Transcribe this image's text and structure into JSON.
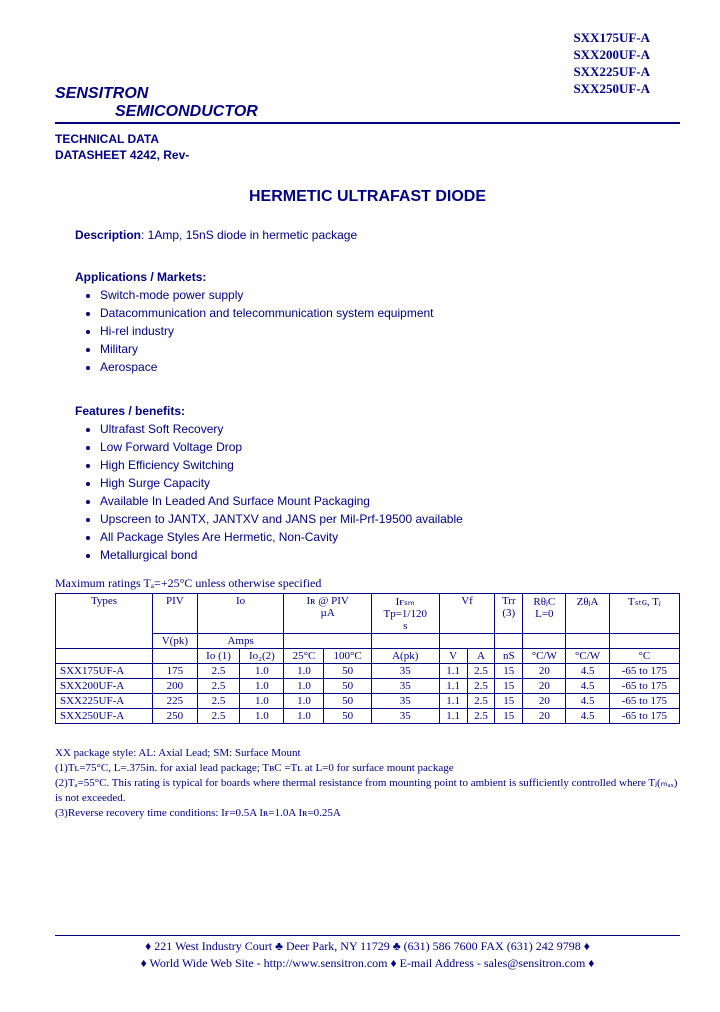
{
  "colors": {
    "text": "#000080",
    "background": "#ffffff",
    "border": "#000080"
  },
  "partNumbers": [
    "SXX175UF-A",
    "SXX200UF-A",
    "SXX225UF-A",
    "SXX250UF-A"
  ],
  "company": {
    "line1": "SENSITRON",
    "line2": "SEMICONDUCTOR"
  },
  "techData": {
    "line1": "TECHNICAL DATA",
    "line2": "DATASHEET 4242, Rev-"
  },
  "title": "HERMETIC ULTRAFAST DIODE",
  "description": {
    "label": "Description",
    "text": ": 1Amp, 15nS diode in hermetic package"
  },
  "applications": {
    "heading": "Applications / Markets:",
    "items": [
      "Switch-mode power supply",
      "Datacommunication and telecommunication system equipment",
      "Hi-rel industry",
      "Military",
      "Aerospace"
    ]
  },
  "features": {
    "heading": "Features / benefits:",
    "items": [
      "Ultrafast Soft Recovery",
      "Low Forward Voltage Drop",
      "High Efficiency Switching",
      "High Surge Capacity",
      "Available In Leaded And Surface Mount Packaging",
      "Upscreen to JANTX, JANTXV and JANS per Mil-Prf-19500 available",
      "All Package Styles Are Hermetic, Non-Cavity",
      "Metallurgical bond"
    ]
  },
  "maxRatings": "Maximum ratings Tₐ=+25°C unless otherwise specified",
  "table": {
    "headerRow1": [
      "Types",
      "PIV",
      "Io",
      "Iʀ @ PIV\nµA",
      "Iғₛₘ\nTp=1/120\ns",
      "Vf",
      "Trr\n(3)",
      "RθⱼC\nL=0",
      "ZθⱼA",
      "Tₛₜɢ, Tⱼ"
    ],
    "headerRow2": [
      "",
      "V(pk)",
      "Amps",
      "",
      "",
      "",
      "",
      "",
      "",
      ""
    ],
    "headerRow3": [
      "",
      "",
      "Io (1)",
      "Io₂(2)",
      "25°C",
      "100°C",
      "A(pk)",
      "V",
      "A",
      "nS",
      "°C/W",
      "°C/W",
      "°C"
    ],
    "rows": [
      [
        "SXX175UF-A",
        "175",
        "2.5",
        "1.0",
        "1.0",
        "50",
        "35",
        "1.1",
        "2.5",
        "15",
        "20",
        "4.5",
        "-65 to 175"
      ],
      [
        "SXX200UF-A",
        "200",
        "2.5",
        "1.0",
        "1.0",
        "50",
        "35",
        "1.1",
        "2.5",
        "15",
        "20",
        "4.5",
        "-65 to 175"
      ],
      [
        "SXX225UF-A",
        "225",
        "2.5",
        "1.0",
        "1.0",
        "50",
        "35",
        "1.1",
        "2.5",
        "15",
        "20",
        "4.5",
        "-65 to 175"
      ],
      [
        "SXX250UF-A",
        "250",
        "2.5",
        "1.0",
        "1.0",
        "50",
        "35",
        "1.1",
        "2.5",
        "15",
        "20",
        "4.5",
        "-65 to 175"
      ]
    ]
  },
  "notes": [
    "XX    package style: AL: Axial Lead; SM: Surface Mount",
    "(1)Tʟ=75°C, L=.375in. for axial lead package; TʙC =Tʟ at L=0 for surface mount package",
    "(2)Tₐ=55°C. This rating is typical for boards where thermal resistance from mounting point to ambient is sufficiently controlled where Tⱼ(ₘₐₓ) is not exceeded.",
    "(3)Reverse recovery time conditions: Iғ=0.5A Iʀ=1.0A Iʀ=0.25A"
  ],
  "footer": {
    "line1": "♦ 221 West Industry Court  ♣  Deer Park, NY  11729  ♣ (631) 586 7600  FAX (631) 242 9798 ♦",
    "line2": "♦ World Wide Web Site - http://www.sensitron.com ♦ E-mail Address - sales@sensitron.com ♦"
  }
}
